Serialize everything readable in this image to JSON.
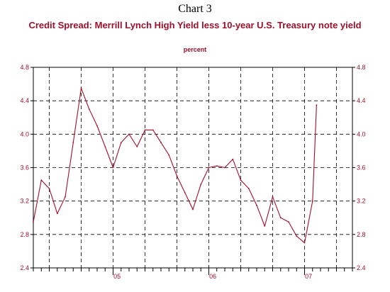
{
  "header": {
    "title": "Chart 3",
    "subtitle": "Credit Spread:  Merrill Lynch High Yield less 10-year U.S. Treasury note yield",
    "unit": "percent"
  },
  "chart_data": {
    "type": "line",
    "title": "Credit Spread:  Merrill Lynch High Yield less 10-year U.S. Treasury note yield",
    "ylabel": "percent",
    "ylim": [
      2.4,
      4.8
    ],
    "yticks": [
      "2.4",
      "2.8",
      "3.2",
      "3.6",
      "4.0",
      "4.4",
      "4.8"
    ],
    "xlim": [
      "2004-03",
      "2007-07"
    ],
    "xticks": [
      {
        "label": "05",
        "x": "2005-01"
      },
      {
        "label": "06",
        "x": "2006-01"
      },
      {
        "label": "07",
        "x": "2007-01"
      }
    ],
    "grid": true,
    "line_color": "#a0102a",
    "series": [
      {
        "x": [
          "2004-03",
          "2004-04",
          "2004-05",
          "2004-06",
          "2004-07",
          "2004-08",
          "2004-09",
          "2004-10",
          "2004-11",
          "2004-12",
          "2005-01",
          "2005-02",
          "2005-03",
          "2005-04",
          "2005-05",
          "2005-06",
          "2005-07",
          "2005-08",
          "2005-09",
          "2005-10",
          "2005-11",
          "2005-12",
          "2006-01",
          "2006-02",
          "2006-03",
          "2006-04",
          "2006-05",
          "2006-06",
          "2006-07",
          "2006-08",
          "2006-09",
          "2006-10",
          "2006-11",
          "2006-12",
          "2007-01",
          "2007-02",
          "2007-02.5"
        ],
        "values": [
          2.95,
          3.45,
          3.35,
          3.05,
          3.25,
          3.9,
          4.55,
          4.3,
          4.1,
          3.85,
          3.6,
          3.9,
          4.0,
          3.85,
          4.05,
          4.05,
          3.9,
          3.75,
          3.5,
          3.3,
          3.1,
          3.4,
          3.6,
          3.62,
          3.6,
          3.7,
          3.45,
          3.35,
          3.15,
          2.9,
          3.25,
          3.0,
          2.95,
          2.78,
          2.7,
          3.2,
          4.35
        ]
      }
    ]
  }
}
